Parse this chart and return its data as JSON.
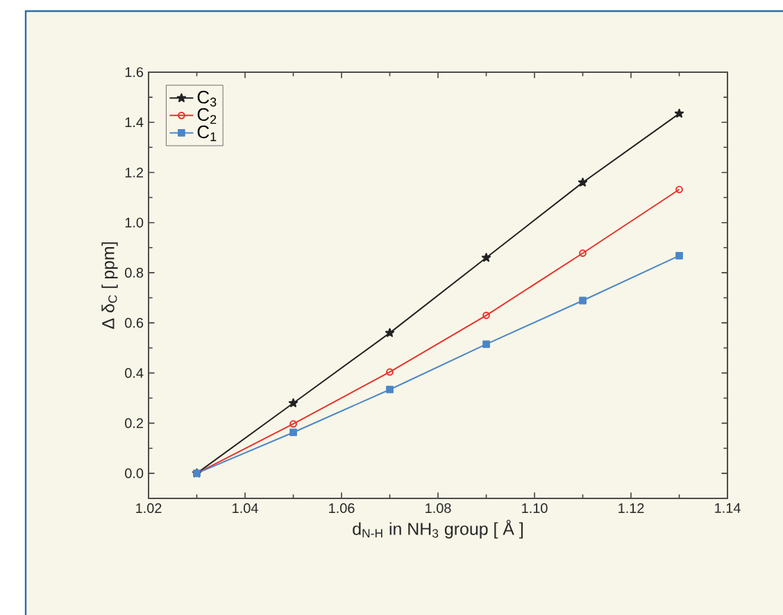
{
  "chart_data": {
    "type": "line",
    "xlabel": "d$_{N-H}$ in NH$_{3}$ group  [ Å ]",
    "ylabel": "Δ δ$_{C}$ [ ppm]",
    "x": [
      1.03,
      1.05,
      1.07,
      1.09,
      1.11,
      1.13
    ],
    "series": [
      {
        "name": "C$_{3}$",
        "color": "#222222",
        "marker": "star",
        "values": [
          0.0,
          0.28,
          0.56,
          0.86,
          1.16,
          1.435
        ]
      },
      {
        "name": "C$_{2}$",
        "color": "#e8302a",
        "marker": "circle",
        "values": [
          0.0,
          0.197,
          0.404,
          0.63,
          0.878,
          1.132
        ]
      },
      {
        "name": "C$_{1}$",
        "color": "#4a86c8",
        "marker": "square",
        "values": [
          0.0,
          0.163,
          0.334,
          0.515,
          0.689,
          0.868
        ]
      }
    ],
    "xlim": [
      1.02,
      1.14
    ],
    "xticks": [
      1.02,
      1.04,
      1.06,
      1.08,
      {
        "value": 1.1,
        "label": "1.10"
      },
      1.12,
      1.14
    ],
    "ylim": [
      -0.1,
      1.6
    ],
    "yticks": [
      {
        "value": 0,
        "label": "0.0"
      },
      0.2,
      0.4,
      0.6,
      0.8,
      {
        "value": 1,
        "label": "1.0"
      },
      1.2,
      1.4,
      1.6
    ],
    "legend": "top left",
    "line_style": "solid"
  }
}
